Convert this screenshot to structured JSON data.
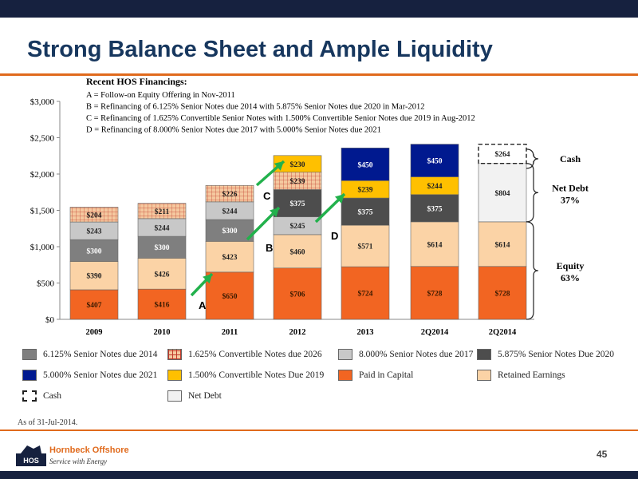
{
  "slide": {
    "title": "Strong Balance Sheet and Ample Liquidity",
    "as_of": "As of 31-Jul-2014.",
    "page_number": "45",
    "company_name": "Hornbeck Offshore",
    "company_tagline": "Service with Energy",
    "logo_letters": "HOS"
  },
  "financings": {
    "title": "Recent HOS Financings:",
    "lines": [
      "A = Follow-on Equity Offering in Nov-2011",
      "B = Refinancing of 6.125% Senior Notes due 2014 with 5.875% Senior Notes due 2020 in Mar-2012",
      "C = Refinancing of 1.625% Convertible Senior Notes with 1.500% Convertible Senior Notes due 2019 in Aug-2012",
      "D = Refinancing of 8.000% Senior Notes due 2017 with 5.000% Senior Notes due 2021"
    ]
  },
  "chart_data": {
    "type": "bar",
    "stacked": true,
    "categories": [
      "2009",
      "2010",
      "2011",
      "2012",
      "2013",
      "2Q2014",
      "2Q2014"
    ],
    "ylim": [
      0,
      3000
    ],
    "yticks": [
      0,
      500,
      1000,
      1500,
      2000,
      2500,
      3000
    ],
    "ytick_labels": [
      "$0",
      "$500",
      "$1,000",
      "$1,500",
      "$2,000",
      "$2,500",
      "$3,000"
    ],
    "grid": false,
    "legend_position": "bottom",
    "series": [
      {
        "name": "Paid in Capital",
        "color": "#f26522",
        "values": [
          407,
          416,
          650,
          706,
          724,
          728,
          728
        ],
        "labels": [
          "$407",
          "$416",
          "$650",
          "$706",
          "$724",
          "$728",
          "$728"
        ]
      },
      {
        "name": "Retained Earnings",
        "color": "#fbd3a6",
        "values": [
          390,
          426,
          423,
          460,
          571,
          614,
          614
        ],
        "labels": [
          "$390",
          "$426",
          "$423",
          "$460",
          "$571",
          "$614",
          "$614"
        ]
      },
      {
        "name": "6.125% Senior Notes due 2014",
        "color": "#7f7f7f",
        "values": [
          300,
          300,
          300,
          0,
          0,
          0,
          0
        ],
        "labels": [
          "$300",
          "$300",
          "$300",
          "",
          "",
          "",
          ""
        ]
      },
      {
        "name": "8.000% Senior Notes due 2017",
        "color": "#c8c8c8",
        "values": [
          243,
          244,
          244,
          245,
          0,
          0,
          0
        ],
        "labels": [
          "$243",
          "$244",
          "$244",
          "$245",
          "",
          "",
          ""
        ]
      },
      {
        "name": "5.875% Senior Notes Due 2020",
        "color": "#4d4d4d",
        "values": [
          0,
          0,
          0,
          375,
          375,
          375,
          0
        ],
        "labels": [
          "",
          "",
          "",
          "$375",
          "$375",
          "$375",
          ""
        ]
      },
      {
        "name": "1.625% Convertible Notes due 2026",
        "color": "#f5c9a0",
        "pattern": "grid",
        "values": [
          204,
          211,
          226,
          239,
          0,
          0,
          0
        ],
        "labels": [
          "$204",
          "$211",
          "$226",
          "$239",
          "",
          "",
          ""
        ]
      },
      {
        "name": "1.500% Convertible Notes Due 2019",
        "color": "#ffc000",
        "values": [
          0,
          0,
          0,
          230,
          239,
          244,
          0
        ],
        "labels": [
          "",
          "",
          "",
          "$230",
          "$239",
          "$244",
          ""
        ]
      },
      {
        "name": "5.000% Senior Notes due 2021",
        "color": "#00198f",
        "values": [
          0,
          0,
          0,
          0,
          450,
          450,
          0
        ],
        "labels": [
          "",
          "",
          "",
          "",
          "$450",
          "$450",
          ""
        ]
      },
      {
        "name": "Net Debt",
        "color": "#f2f2f2",
        "values": [
          0,
          0,
          0,
          0,
          0,
          0,
          804
        ],
        "labels": [
          "",
          "",
          "",
          "",
          "",
          "",
          "$804"
        ]
      },
      {
        "name": "Cash",
        "color": "#ffffff",
        "dashed": true,
        "values": [
          0,
          0,
          0,
          0,
          0,
          0,
          264
        ],
        "labels": [
          "",
          "",
          "",
          "",
          "",
          "",
          "$264"
        ]
      }
    ],
    "legend_order": [
      "6.125% Senior Notes due 2014",
      "1.625% Convertible Notes due 2026",
      "8.000% Senior Notes due 2017",
      "5.875% Senior Notes Due 2020",
      "5.000% Senior Notes due 2021",
      "1.500% Convertible Notes Due 2019",
      "Paid in Capital",
      "Retained Earnings",
      "Cash",
      "Net Debt"
    ],
    "annotations": [
      {
        "letter": "A",
        "category_from": "2010",
        "category_to": "2011"
      },
      {
        "letter": "B",
        "category_from": "2011",
        "category_to": "2012"
      },
      {
        "letter": "C",
        "category_from": "2011",
        "category_to": "2012"
      },
      {
        "letter": "D",
        "category_from": "2012",
        "category_to": "2013"
      }
    ],
    "brackets": [
      {
        "label": "Cash",
        "range": [
          2078,
          2342
        ]
      },
      {
        "label": "Net Debt",
        "sublabel": "37%",
        "range": [
          1342,
          2146
        ]
      },
      {
        "label": "Equity",
        "sublabel": "63%",
        "range": [
          0,
          1342
        ]
      }
    ],
    "arrow_color": "#22b14c"
  }
}
